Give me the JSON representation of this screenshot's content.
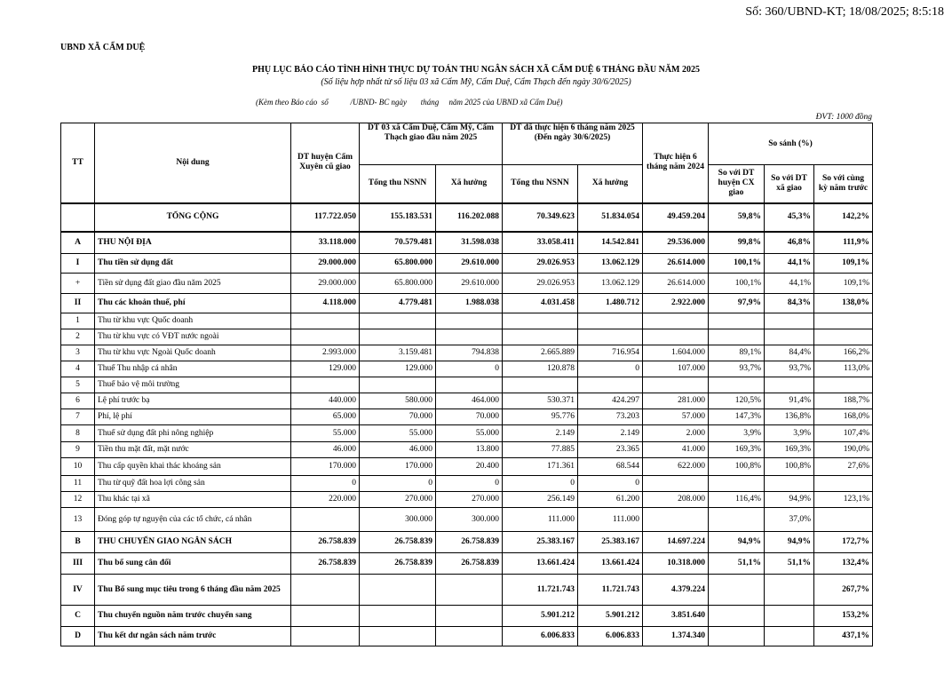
{
  "stamp": "Số: 360/UBND-KT; 18/08/2025; 8:5:18",
  "org": "UBND XÃ CẨM DUỆ",
  "title": "PHỤ LỤC BÁO CÁO  TÌNH HÌNH THỰC DỰ TOÁN THU NGÂN SÁCH XÃ CẨM DUỆ 6 THÁNG ĐẦU NĂM 2025",
  "subtitle": "(Số liệu hợp nhất từ số liệu 03 xã Cẩm Mỹ, Cẩm Duệ, Cẩm Thạch đến ngày 30/6/2025)",
  "attachment": "(Kèm theo Báo cáo  số           /UBND- BC ngày       tháng     năm 2025 của UBND xã Cẩm Duệ)",
  "unit": "ĐVT: 1000  đồng",
  "headers": {
    "tt": "TT",
    "content": "Nội dung",
    "dt_huyen": "DT huyện Cẩm Xuyên cũ  giao",
    "dt_03xa": "DT 03 xã Cẩm Duệ, Cẩm Mỹ, Cẩm Thạch  giao đầu năm 2025",
    "dt_thuchien": "DT đã thực hiện 6 tháng năm 2025 (Đến ngày 30/6/2025)",
    "thuchien_2024": "Thực hiện 6 tháng năm 2024",
    "so_sanh": "So sánh (%)",
    "tong_thu_1": "Tổng thu NSNN",
    "xa_huong_1": "Xã hưởng",
    "tong_thu_2": "Tổng thu NSNN",
    "xa_huong_2": "Xã hưởng",
    "ss_huyen": "So với DT huyện  CX giao",
    "ss_xa": "So với DT xã giao",
    "ss_cungky": "So với cùng kỳ năm trước"
  },
  "rows": [
    {
      "tt": "",
      "content": "TỔNG CỘNG",
      "bold": true,
      "total": true,
      "values": [
        "117.722.050",
        "155.183.531",
        "116.202.088",
        "70.349.623",
        "51.834.054",
        "49.459.204",
        "59,8%",
        "45,3%",
        "142,2%"
      ]
    },
    {
      "tt": "A",
      "content": "THU NỘI ĐỊA",
      "bold": true,
      "values": [
        "33.118.000",
        "70.579.481",
        "31.598.038",
        "33.058.411",
        "14.542.841",
        "29.536.000",
        "99,8%",
        "46,8%",
        "111,9%"
      ]
    },
    {
      "tt": "I",
      "content": "Thu tiền sử dụng đất",
      "bold": true,
      "values": [
        "29.000.000",
        "65.800.000",
        "29.610.000",
        "29.026.953",
        "13.062.129",
        "26.614.000",
        "100,1%",
        "44,1%",
        "109,1%"
      ]
    },
    {
      "tt": "+",
      "content": "Tiền sử dụng đất giao đầu năm 2025",
      "bold": false,
      "values": [
        "29.000.000",
        "65.800.000",
        "29.610.000",
        "29.026.953",
        "13.062.129",
        "26.614.000",
        "100,1%",
        "44,1%",
        "109,1%"
      ]
    },
    {
      "tt": "II",
      "content": "Thu các khoản thuế, phí",
      "bold": true,
      "values": [
        "4.118.000",
        "4.779.481",
        "1.988.038",
        "4.031.458",
        "1.480.712",
        "2.922.000",
        "97,9%",
        "84,3%",
        "138,0%"
      ]
    },
    {
      "tt": "1",
      "content": "Thu từ khu vực Quốc doanh",
      "bold": false,
      "values": [
        "",
        "",
        "",
        "",
        "",
        "",
        "",
        "",
        ""
      ]
    },
    {
      "tt": "2",
      "content": "Thu từ khu vực có VĐT nước ngoài",
      "bold": false,
      "values": [
        "",
        "",
        "",
        "",
        "",
        "",
        "",
        "",
        ""
      ]
    },
    {
      "tt": "3",
      "content": "Thu từ khu vực Ngoài Quốc doanh",
      "bold": false,
      "values": [
        "2.993.000",
        "3.159.481",
        "794.838",
        "2.665.889",
        "716.954",
        "1.604.000",
        "89,1%",
        "84,4%",
        "166,2%"
      ]
    },
    {
      "tt": "4",
      "content": "Thuế Thu nhập cá nhân",
      "bold": false,
      "values": [
        "129.000",
        "129.000",
        "0",
        "120.878",
        "0",
        "107.000",
        "93,7%",
        "93,7%",
        "113,0%"
      ]
    },
    {
      "tt": "5",
      "content": "Thuế bảo vệ môi trường",
      "bold": false,
      "values": [
        "",
        "",
        "",
        "",
        "",
        "",
        "",
        "",
        ""
      ]
    },
    {
      "tt": "6",
      "content": "Lệ phí trước bạ",
      "bold": false,
      "values": [
        "440.000",
        "580.000",
        "464.000",
        "530.371",
        "424.297",
        "281.000",
        "120,5%",
        "91,4%",
        "188,7%"
      ]
    },
    {
      "tt": "7",
      "content": "Phí, lệ phí",
      "bold": false,
      "values": [
        "65.000",
        "70.000",
        "70.000",
        "95.776",
        "73.203",
        "57.000",
        "147,3%",
        "136,8%",
        "168,0%"
      ]
    },
    {
      "tt": "8",
      "content": "Thuế sử dụng đất phi nông nghiệp",
      "bold": false,
      "values": [
        "55.000",
        "55.000",
        "55.000",
        "2.149",
        "2.149",
        "2.000",
        "3,9%",
        "3,9%",
        "107,4%"
      ]
    },
    {
      "tt": "9",
      "content": "Tiền thu mặt đất, mặt nước",
      "bold": false,
      "values": [
        "46.000",
        "46.000",
        "13.800",
        "77.885",
        "23.365",
        "41.000",
        "169,3%",
        "169,3%",
        "190,0%"
      ]
    },
    {
      "tt": "10",
      "content": "Thu cấp quyền khai thác khoáng sản",
      "bold": false,
      "values": [
        "170.000",
        "170.000",
        "20.400",
        "171.361",
        "68.544",
        "622.000",
        "100,8%",
        "100,8%",
        "27,6%"
      ]
    },
    {
      "tt": "11",
      "content": "Thu từ quỹ đất hoa lợi công sản",
      "bold": false,
      "values": [
        "0",
        "0",
        "0",
        "0",
        "0",
        "",
        "",
        "",
        ""
      ]
    },
    {
      "tt": "12",
      "content": "Thu khác tại xã",
      "bold": false,
      "values": [
        "220.000",
        "270.000",
        "270.000",
        "256.149",
        "61.200",
        "208.000",
        "116,4%",
        "94,9%",
        "123,1%"
      ]
    },
    {
      "tt": "13",
      "content": " Đóng góp tự nguyện của các tổ chức, cá nhân",
      "bold": false,
      "values": [
        "",
        "300.000",
        "300.000",
        "111.000",
        "111.000",
        "",
        "",
        "37,0%",
        ""
      ]
    },
    {
      "tt": "B",
      "content": "THU CHUYỂN GIAO NGÂN SÁCH",
      "bold": true,
      "values": [
        "26.758.839",
        "26.758.839",
        "26.758.839",
        "25.383.167",
        "25.383.167",
        "14.697.224",
        "94,9%",
        "94,9%",
        "172,7%"
      ]
    },
    {
      "tt": "III",
      "content": "Thu bổ sung cân đối",
      "bold": true,
      "values": [
        "26.758.839",
        "26.758.839",
        "26.758.839",
        "13.661.424",
        "13.661.424",
        "10.318.000",
        "51,1%",
        "51,1%",
        "132,4%"
      ]
    },
    {
      "tt": "IV",
      "content": "Thu Bổ sung mục tiêu trong 6 tháng đầu năm 2025",
      "bold": true,
      "values": [
        "",
        "",
        "",
        "11.721.743",
        "11.721.743",
        "4.379.224",
        "",
        "",
        "267,7%"
      ]
    },
    {
      "tt": "C",
      "content": "Thu chuyển nguồn năm trước chuyển sang",
      "bold": true,
      "values": [
        "",
        "",
        "",
        "5.901.212",
        "5.901.212",
        "3.851.640",
        "",
        "",
        "153,2%"
      ]
    },
    {
      "tt": "D",
      "content": "Thu kết dư ngân sách năm trước",
      "bold": true,
      "values": [
        "",
        "",
        "",
        "6.006.833",
        "6.006.833",
        "1.374.340",
        "",
        "",
        "437,1%"
      ]
    }
  ]
}
